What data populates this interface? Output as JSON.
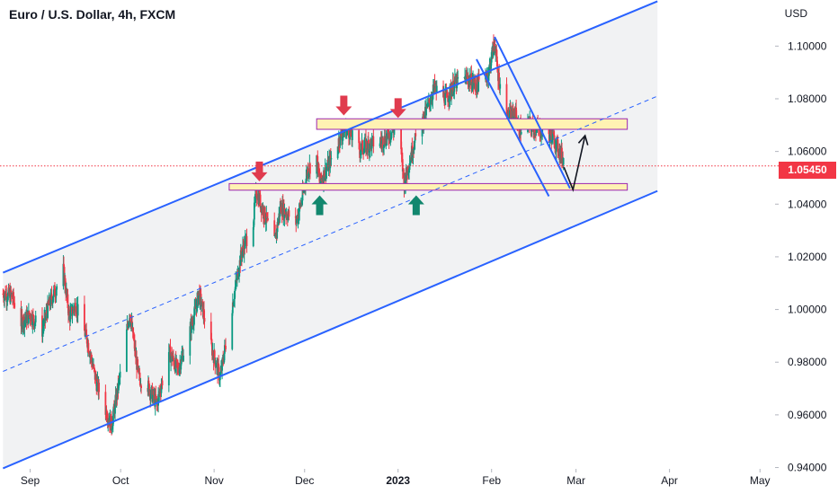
{
  "header": {
    "symbol_title": "Euro / U.S. Dollar, 4h, FXCM",
    "currency": "USD"
  },
  "last_price_label": "1.05450",
  "colors": {
    "up": "#089981",
    "down": "#f23645",
    "channel": "#2962ff",
    "zone_fill": "#fff2b3",
    "zone_border": "#9c27b0",
    "arrow_down": "#e03b4e",
    "arrow_up": "#12876e"
  },
  "chart_data": {
    "type": "candlestick",
    "title": "Euro / U.S. Dollar, 4h, FXCM",
    "y_label": "USD",
    "y_ticks": [
      "1.10000",
      "1.08000",
      "1.06000",
      "1.04000",
      "1.02000",
      "1.00000",
      "0.98000",
      "0.96000",
      "0.94000"
    ],
    "ylim": [
      0.9395,
      1.1175
    ],
    "x_ticks": [
      "Sep",
      "Oct",
      "Nov",
      "Dec",
      "2023",
      "Feb",
      "Mar",
      "Apr",
      "May"
    ],
    "x_tick_dates": [
      "2022-09-01",
      "2022-10-01",
      "2022-11-01",
      "2022-12-01",
      "2023-01-01",
      "2023-02-01",
      "2023-03-01",
      "2023-04-01",
      "2023-05-01"
    ],
    "xlim": [
      "2022-08-22",
      "2023-05-06"
    ],
    "last_price": 1.0545,
    "price_path": [
      [
        "2022-08-23",
        1.006
      ],
      [
        "2022-08-26",
        1.005
      ],
      [
        "2022-08-29",
        0.995
      ],
      [
        "2022-09-01",
        0.998
      ],
      [
        "2022-09-05",
        0.992
      ],
      [
        "2022-09-07",
        1.001
      ],
      [
        "2022-09-12",
        1.015
      ],
      [
        "2022-09-14",
        0.997
      ],
      [
        "2022-09-16",
        1.002
      ],
      [
        "2022-09-20",
        0.988
      ],
      [
        "2022-09-23",
        0.972
      ],
      [
        "2022-09-26",
        0.962
      ],
      [
        "2022-09-28",
        0.956
      ],
      [
        "2022-10-01",
        0.976
      ],
      [
        "2022-10-04",
        0.999
      ],
      [
        "2022-10-07",
        0.974
      ],
      [
        "2022-10-10",
        0.971
      ],
      [
        "2022-10-13",
        0.964
      ],
      [
        "2022-10-17",
        0.984
      ],
      [
        "2022-10-20",
        0.977
      ],
      [
        "2022-10-25",
        0.996
      ],
      [
        "2022-10-27",
        1.006
      ],
      [
        "2022-10-31",
        0.986
      ],
      [
        "2022-11-03",
        0.974
      ],
      [
        "2022-11-06",
        0.995
      ],
      [
        "2022-11-10",
        1.021
      ],
      [
        "2022-11-14",
        1.034
      ],
      [
        "2022-11-15",
        1.045
      ],
      [
        "2022-11-18",
        1.035
      ],
      [
        "2022-11-21",
        1.025
      ],
      [
        "2022-11-23",
        1.039
      ],
      [
        "2022-11-28",
        1.033
      ],
      [
        "2022-11-30",
        1.041
      ],
      [
        "2022-12-02",
        1.053
      ],
      [
        "2022-12-05",
        1.058
      ],
      [
        "2022-12-06",
        1.048
      ],
      [
        "2022-12-09",
        1.055
      ],
      [
        "2022-12-13",
        1.066
      ],
      [
        "2022-12-15",
        1.069
      ],
      [
        "2022-12-19",
        1.061
      ],
      [
        "2022-12-23",
        1.063
      ],
      [
        "2022-12-27",
        1.064
      ],
      [
        "2023-01-01",
        1.07
      ],
      [
        "2023-01-03",
        1.048
      ],
      [
        "2023-01-06",
        1.062
      ],
      [
        "2023-01-10",
        1.074
      ],
      [
        "2023-01-13",
        1.084
      ],
      [
        "2023-01-17",
        1.08
      ],
      [
        "2023-01-20",
        1.086
      ],
      [
        "2023-01-24",
        1.088
      ],
      [
        "2023-01-27",
        1.085
      ],
      [
        "2023-01-31",
        1.09
      ],
      [
        "2023-02-02",
        1.102
      ],
      [
        "2023-02-03",
        1.09
      ],
      [
        "2023-02-06",
        1.073
      ],
      [
        "2023-02-09",
        1.074
      ],
      [
        "2023-02-10",
        1.068
      ],
      [
        "2023-02-13",
        1.07
      ],
      [
        "2023-02-15",
        1.069
      ],
      [
        "2023-02-17",
        1.068
      ],
      [
        "2023-02-21",
        1.066
      ],
      [
        "2023-02-24",
        1.059
      ],
      [
        "2023-02-26",
        1.0545
      ]
    ],
    "channel": {
      "upper": [
        [
          "2022-08-23",
          1.014
        ],
        [
          "2023-03-28",
          1.117
        ]
      ],
      "lower": [
        [
          "2022-08-23",
          0.9397
        ],
        [
          "2023-03-28",
          1.045
        ]
      ],
      "midline": [
        [
          "2022-08-23",
          0.9765
        ],
        [
          "2023-03-28",
          1.081
        ]
      ]
    },
    "zones": [
      {
        "start": "2022-12-05",
        "end": "2023-03-18",
        "low": 1.0684,
        "high": 1.0724
      },
      {
        "start": "2022-11-06",
        "end": "2023-03-18",
        "low": 1.0453,
        "high": 1.0478
      }
    ],
    "flag_lines": [
      [
        [
          "2023-01-27",
          1.095
        ],
        [
          "2023-02-20",
          1.043
        ]
      ],
      [
        [
          "2023-02-02",
          1.1035
        ],
        [
          "2023-02-27",
          1.046
        ]
      ]
    ],
    "projection": [
      [
        "2023-02-25",
        1.054
      ],
      [
        "2023-02-28",
        1.0455
      ],
      [
        "2023-03-04",
        1.066
      ]
    ],
    "resistance_arrows": [
      [
        "2022-11-16",
        1.048
      ],
      [
        "2022-12-14",
        1.073
      ],
      [
        "2023-01-01",
        1.072
      ]
    ],
    "support_arrows": [
      [
        "2022-12-06",
        1.044
      ],
      [
        "2023-01-07",
        1.044
      ]
    ]
  }
}
